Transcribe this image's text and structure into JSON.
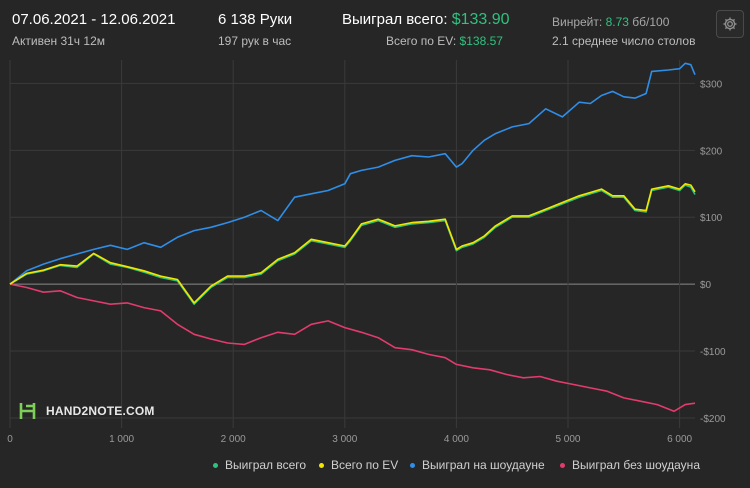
{
  "header": {
    "date_range": "07.06.2021 - 12.06.2021",
    "active_time": "Активен 31ч 12м",
    "hands": "6 138 Руки",
    "hands_per_hour": "197 рук в час",
    "won_label": "Выиграл всего:",
    "won_value": "$133.90",
    "ev_label": "Всего по EV:",
    "ev_value": "$138.57",
    "winrate_label": "Винрейт:",
    "winrate_value": "8.73",
    "winrate_unit": "бб/100",
    "tables_avg": "2.1 среднее число столов"
  },
  "settings_icon": "gear-icon",
  "logo": {
    "text": "HAND2NOTE.COM",
    "icon": "h2n-logo-icon"
  },
  "colors": {
    "background": "#262626",
    "won": "#2ec27e",
    "ev": "#f2e600",
    "showdown": "#2f8ee8",
    "non_showdown": "#e23b6d",
    "grid": "#3a3a3a",
    "zero_line": "#8a8a8a"
  },
  "legend": [
    {
      "label": "Выиграл всего",
      "color": "#2ec27e"
    },
    {
      "label": "Всего по EV",
      "color": "#f2e600"
    },
    {
      "label": "Выиграл на шоудауне",
      "color": "#2f8ee8"
    },
    {
      "label": "Выиграл без шоудауна",
      "color": "#e23b6d"
    }
  ],
  "chart_data": {
    "type": "line",
    "xlim": [
      0,
      6138
    ],
    "ylim": [
      -215,
      335
    ],
    "x_ticks": [
      0,
      1000,
      2000,
      3000,
      4000,
      5000,
      6000
    ],
    "x_tick_labels": [
      "0",
      "1 000",
      "2 000",
      "3 000",
      "4 000",
      "5 000",
      "6 000"
    ],
    "y_ticks": [
      300,
      200,
      100,
      0,
      -100,
      -200
    ],
    "y_tick_labels": [
      "$300",
      "$200",
      "$100",
      "$0",
      "-$100",
      "-$200"
    ],
    "grid": true,
    "series": [
      {
        "name": "Выиграл на шоудауне",
        "x": [
          0,
          150,
          300,
          450,
          600,
          750,
          900,
          1050,
          1200,
          1350,
          1500,
          1650,
          1800,
          1950,
          2100,
          2250,
          2400,
          2550,
          2700,
          2850,
          3000,
          3050,
          3150,
          3300,
          3450,
          3600,
          3750,
          3900,
          4000,
          4050,
          4150,
          4250,
          4350,
          4500,
          4650,
          4800,
          4950,
          5100,
          5200,
          5300,
          5400,
          5500,
          5600,
          5700,
          5750,
          5900,
          6000,
          6050,
          6100,
          6138
        ],
        "values": [
          0,
          20,
          30,
          38,
          45,
          52,
          58,
          52,
          62,
          55,
          70,
          80,
          85,
          92,
          100,
          110,
          95,
          130,
          135,
          140,
          150,
          165,
          170,
          175,
          185,
          192,
          190,
          195,
          175,
          180,
          200,
          215,
          225,
          235,
          240,
          262,
          250,
          272,
          270,
          282,
          288,
          280,
          278,
          285,
          318,
          320,
          322,
          330,
          328,
          313
        ]
      },
      {
        "name": "Выиграл без шоудауна",
        "x": [
          0,
          150,
          300,
          450,
          600,
          750,
          900,
          1050,
          1200,
          1350,
          1500,
          1650,
          1800,
          1950,
          2100,
          2250,
          2400,
          2550,
          2700,
          2850,
          3000,
          3150,
          3300,
          3450,
          3600,
          3750,
          3900,
          4000,
          4150,
          4300,
          4450,
          4600,
          4750,
          4900,
          5050,
          5200,
          5350,
          5500,
          5650,
          5800,
          5950,
          6050,
          6138
        ],
        "values": [
          0,
          -5,
          -12,
          -10,
          -20,
          -25,
          -30,
          -28,
          -35,
          -40,
          -60,
          -75,
          -82,
          -88,
          -90,
          -80,
          -72,
          -75,
          -60,
          -55,
          -65,
          -72,
          -80,
          -95,
          -98,
          -105,
          -110,
          -120,
          -125,
          -128,
          -135,
          -140,
          -138,
          -145,
          -150,
          -155,
          -160,
          -170,
          -175,
          -180,
          -190,
          -180,
          -178
        ]
      },
      {
        "name": "Выиграл всего",
        "x": [
          0,
          150,
          300,
          450,
          600,
          750,
          900,
          1050,
          1200,
          1350,
          1500,
          1650,
          1800,
          1950,
          2100,
          2250,
          2400,
          2550,
          2700,
          2850,
          3000,
          3050,
          3150,
          3300,
          3450,
          3600,
          3750,
          3900,
          4000,
          4050,
          4150,
          4250,
          4350,
          4500,
          4650,
          4800,
          4950,
          5100,
          5200,
          5300,
          5400,
          5500,
          5600,
          5700,
          5750,
          5900,
          6000,
          6050,
          6100,
          6138
        ],
        "values": [
          0,
          15,
          20,
          28,
          25,
          45,
          30,
          25,
          18,
          10,
          5,
          -30,
          -5,
          10,
          10,
          15,
          35,
          45,
          65,
          60,
          55,
          65,
          88,
          95,
          85,
          90,
          92,
          95,
          50,
          55,
          60,
          70,
          85,
          100,
          100,
          110,
          120,
          130,
          135,
          140,
          130,
          130,
          110,
          108,
          140,
          145,
          140,
          148,
          145,
          134
        ]
      },
      {
        "name": "Всего по EV",
        "x": [
          0,
          150,
          300,
          450,
          600,
          750,
          900,
          1050,
          1200,
          1350,
          1500,
          1650,
          1800,
          1950,
          2100,
          2250,
          2400,
          2550,
          2700,
          2850,
          3000,
          3050,
          3150,
          3300,
          3450,
          3600,
          3750,
          3900,
          4000,
          4050,
          4150,
          4250,
          4350,
          4500,
          4650,
          4800,
          4950,
          5100,
          5200,
          5300,
          5400,
          5500,
          5600,
          5700,
          5750,
          5900,
          6000,
          6050,
          6100,
          6138
        ],
        "values": [
          0,
          16,
          21,
          29,
          27,
          46,
          32,
          26,
          20,
          12,
          7,
          -28,
          -3,
          12,
          12,
          17,
          37,
          47,
          67,
          62,
          57,
          67,
          90,
          97,
          87,
          92,
          94,
          97,
          52,
          57,
          62,
          72,
          87,
          102,
          102,
          112,
          122,
          132,
          137,
          142,
          132,
          132,
          112,
          110,
          142,
          147,
          142,
          150,
          148,
          138
        ]
      }
    ]
  }
}
